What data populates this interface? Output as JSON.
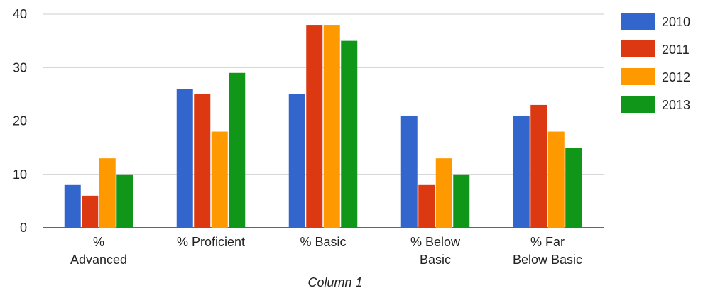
{
  "chart_data": {
    "type": "bar",
    "title": "",
    "xlabel": "Column 1",
    "ylabel": "",
    "ylim": [
      0,
      40
    ],
    "yticks": [
      0,
      10,
      20,
      30,
      40
    ],
    "grid": true,
    "legend": "right",
    "categories": [
      [
        "%",
        "Advanced"
      ],
      [
        "% Proficient"
      ],
      [
        "% Basic"
      ],
      [
        "% Below",
        "Basic"
      ],
      [
        "% Far",
        "Below Basic"
      ]
    ],
    "series": [
      {
        "name": "2010",
        "color": "#3366cc",
        "values": [
          8,
          26,
          25,
          21,
          21
        ]
      },
      {
        "name": "2011",
        "color": "#dc3912",
        "values": [
          6,
          25,
          38,
          8,
          23
        ]
      },
      {
        "name": "2012",
        "color": "#ff9900",
        "values": [
          13,
          18,
          38,
          13,
          18
        ]
      },
      {
        "name": "2013",
        "color": "#109618",
        "values": [
          10,
          29,
          35,
          10,
          15
        ]
      }
    ]
  }
}
